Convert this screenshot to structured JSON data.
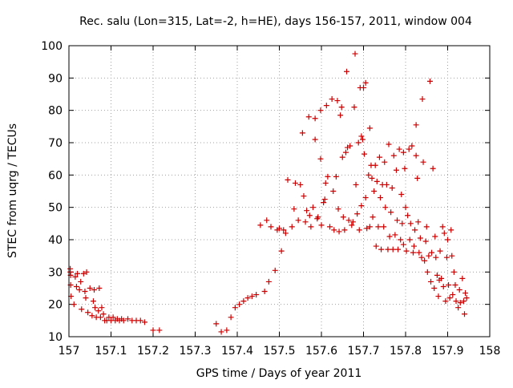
{
  "chart_data": {
    "type": "scatter",
    "title": "Rec. salu (Lon=315, Lat=-2, h=HE), days 156-157, 2011, window 004",
    "xlabel": "GPS time / Days of year 2011",
    "ylabel": "STEC from uqrg / TECUs",
    "xlim": [
      157,
      158
    ],
    "ylim": [
      10,
      100
    ],
    "xticks": [
      "157",
      "157.1",
      "157.2",
      "157.3",
      "157.4",
      "157.5",
      "157.6",
      "157.7",
      "157.8",
      "157.9",
      "158"
    ],
    "yticks": [
      "10",
      "20",
      "30",
      "40",
      "50",
      "60",
      "70",
      "80",
      "90",
      "100"
    ],
    "grid": true,
    "marker": "+",
    "color": "#cc0000",
    "series": [
      {
        "points": [
          [
            157.003,
            31
          ],
          [
            157.003,
            30
          ],
          [
            157.004,
            29
          ],
          [
            157.004,
            26
          ],
          [
            157.005,
            22.5
          ],
          [
            157.012,
            20
          ],
          [
            157.015,
            28.5
          ],
          [
            157.018,
            25.5
          ],
          [
            157.02,
            29.5
          ],
          [
            157.025,
            24.5
          ],
          [
            157.028,
            27
          ],
          [
            157.03,
            18.5
          ],
          [
            157.035,
            29.5
          ],
          [
            157.038,
            24
          ],
          [
            157.04,
            22
          ],
          [
            157.042,
            30
          ],
          [
            157.045,
            17.5
          ],
          [
            157.05,
            25
          ],
          [
            157.055,
            16.5
          ],
          [
            157.058,
            21
          ],
          [
            157.06,
            24.5
          ],
          [
            157.062,
            19
          ],
          [
            157.065,
            16
          ],
          [
            157.07,
            18
          ],
          [
            157.072,
            25
          ],
          [
            157.075,
            16
          ],
          [
            157.078,
            19
          ],
          [
            157.082,
            17
          ],
          [
            157.085,
            15
          ],
          [
            157.09,
            15
          ],
          [
            157.095,
            16
          ],
          [
            157.1,
            15
          ],
          [
            157.105,
            16
          ],
          [
            157.11,
            15
          ],
          [
            157.115,
            15.5
          ],
          [
            157.12,
            15
          ],
          [
            157.125,
            15.5
          ],
          [
            157.13,
            15
          ],
          [
            157.14,
            15.5
          ],
          [
            157.15,
            15
          ],
          [
            157.16,
            15
          ],
          [
            157.17,
            15
          ],
          [
            157.18,
            14.5
          ],
          [
            157.2,
            12
          ],
          [
            157.215,
            12
          ],
          [
            157.35,
            14
          ],
          [
            157.362,
            11.5
          ],
          [
            157.375,
            12
          ],
          [
            157.385,
            16
          ],
          [
            157.395,
            19
          ],
          [
            157.405,
            20
          ],
          [
            157.415,
            21
          ],
          [
            157.425,
            22
          ],
          [
            157.435,
            22.5
          ],
          [
            157.445,
            23
          ],
          [
            157.455,
            44.5
          ],
          [
            157.465,
            24
          ],
          [
            157.47,
            46
          ],
          [
            157.475,
            27
          ],
          [
            157.48,
            44
          ],
          [
            157.49,
            30.5
          ],
          [
            157.495,
            43
          ],
          [
            157.5,
            43.5
          ],
          [
            157.505,
            36.5
          ],
          [
            157.51,
            43
          ],
          [
            157.515,
            42
          ],
          [
            157.52,
            58.5
          ],
          [
            157.53,
            44
          ],
          [
            157.535,
            49.5
          ],
          [
            157.538,
            57.5
          ],
          [
            157.545,
            46
          ],
          [
            157.55,
            57
          ],
          [
            157.555,
            73
          ],
          [
            157.558,
            53.5
          ],
          [
            157.562,
            45.5
          ],
          [
            157.565,
            49
          ],
          [
            157.57,
            78
          ],
          [
            157.572,
            47.5
          ],
          [
            157.575,
            44
          ],
          [
            157.58,
            50
          ],
          [
            157.585,
            77.5
          ],
          [
            157.585,
            71
          ],
          [
            157.59,
            46.5
          ],
          [
            157.592,
            47
          ],
          [
            157.598,
            80
          ],
          [
            157.598,
            65
          ],
          [
            157.6,
            44.5
          ],
          [
            157.605,
            51.5
          ],
          [
            157.608,
            52.5
          ],
          [
            157.61,
            57.5
          ],
          [
            157.612,
            81.5
          ],
          [
            157.615,
            59.5
          ],
          [
            157.62,
            44
          ],
          [
            157.625,
            83.5
          ],
          [
            157.628,
            55
          ],
          [
            157.63,
            43
          ],
          [
            157.635,
            59.5
          ],
          [
            157.638,
            83
          ],
          [
            157.64,
            49.5
          ],
          [
            157.642,
            42.5
          ],
          [
            157.645,
            78.5
          ],
          [
            157.648,
            81
          ],
          [
            157.65,
            65.5
          ],
          [
            157.652,
            47
          ],
          [
            157.655,
            43
          ],
          [
            157.658,
            67
          ],
          [
            157.66,
            92
          ],
          [
            157.662,
            68.5
          ],
          [
            157.665,
            46
          ],
          [
            157.668,
            69
          ],
          [
            157.672,
            44.5
          ],
          [
            157.675,
            45.5
          ],
          [
            157.678,
            81
          ],
          [
            157.68,
            97.5
          ],
          [
            157.682,
            57
          ],
          [
            157.685,
            48
          ],
          [
            157.688,
            70
          ],
          [
            157.69,
            43
          ],
          [
            157.692,
            87
          ],
          [
            157.695,
            72
          ],
          [
            157.695,
            50.5
          ],
          [
            157.698,
            71
          ],
          [
            157.7,
            87
          ],
          [
            157.702,
            66.5
          ],
          [
            157.705,
            53
          ],
          [
            157.705,
            88.5
          ],
          [
            157.708,
            43.5
          ],
          [
            157.712,
            60
          ],
          [
            157.715,
            74.5
          ],
          [
            157.715,
            44
          ],
          [
            157.718,
            63
          ],
          [
            157.72,
            59
          ],
          [
            157.722,
            47
          ],
          [
            157.725,
            55
          ],
          [
            157.728,
            63
          ],
          [
            157.73,
            38
          ],
          [
            157.732,
            58
          ],
          [
            157.735,
            44
          ],
          [
            157.738,
            65.5
          ],
          [
            157.74,
            53
          ],
          [
            157.742,
            37
          ],
          [
            157.745,
            57
          ],
          [
            157.748,
            44
          ],
          [
            157.75,
            64
          ],
          [
            157.752,
            50
          ],
          [
            157.755,
            57
          ],
          [
            157.758,
            37
          ],
          [
            157.76,
            69.5
          ],
          [
            157.762,
            41
          ],
          [
            157.765,
            48.5
          ],
          [
            157.768,
            56
          ],
          [
            157.77,
            37
          ],
          [
            157.772,
            66
          ],
          [
            157.775,
            41.5
          ],
          [
            157.778,
            61.5
          ],
          [
            157.78,
            46
          ],
          [
            157.782,
            37
          ],
          [
            157.785,
            68
          ],
          [
            157.788,
            40
          ],
          [
            157.79,
            54
          ],
          [
            157.792,
            45
          ],
          [
            157.795,
            38.5
          ],
          [
            157.795,
            67
          ],
          [
            157.798,
            62
          ],
          [
            157.8,
            50
          ],
          [
            157.802,
            36.5
          ],
          [
            157.805,
            47.5
          ],
          [
            157.808,
            68
          ],
          [
            157.81,
            40
          ],
          [
            157.812,
            45
          ],
          [
            157.815,
            69
          ],
          [
            157.818,
            36
          ],
          [
            157.82,
            38
          ],
          [
            157.822,
            43
          ],
          [
            157.825,
            66
          ],
          [
            157.825,
            75.5
          ],
          [
            157.828,
            59
          ],
          [
            157.83,
            45.5
          ],
          [
            157.832,
            36
          ],
          [
            157.835,
            40.5
          ],
          [
            157.838,
            34.5
          ],
          [
            157.84,
            83.5
          ],
          [
            157.842,
            64
          ],
          [
            157.845,
            33.5
          ],
          [
            157.848,
            39.5
          ],
          [
            157.85,
            44
          ],
          [
            157.852,
            30
          ],
          [
            157.855,
            35
          ],
          [
            157.858,
            89
          ],
          [
            157.86,
            27
          ],
          [
            157.862,
            36
          ],
          [
            157.865,
            62
          ],
          [
            157.868,
            25
          ],
          [
            157.87,
            41
          ],
          [
            157.872,
            34.5
          ],
          [
            157.875,
            29
          ],
          [
            157.878,
            22.5
          ],
          [
            157.88,
            27.5
          ],
          [
            157.882,
            36.5
          ],
          [
            157.885,
            28
          ],
          [
            157.888,
            44
          ],
          [
            157.89,
            25.5
          ],
          [
            157.892,
            42
          ],
          [
            157.895,
            21
          ],
          [
            157.898,
            34.5
          ],
          [
            157.9,
            40
          ],
          [
            157.902,
            26
          ],
          [
            157.905,
            22
          ],
          [
            157.908,
            43
          ],
          [
            157.91,
            35
          ],
          [
            157.912,
            23
          ],
          [
            157.915,
            30
          ],
          [
            157.918,
            26
          ],
          [
            157.92,
            21
          ],
          [
            157.925,
            19
          ],
          [
            157.928,
            24.5
          ],
          [
            157.93,
            20.5
          ],
          [
            157.935,
            28
          ],
          [
            157.938,
            21
          ],
          [
            157.94,
            17
          ],
          [
            157.942,
            23.5
          ],
          [
            157.945,
            22
          ]
        ]
      }
    ]
  }
}
